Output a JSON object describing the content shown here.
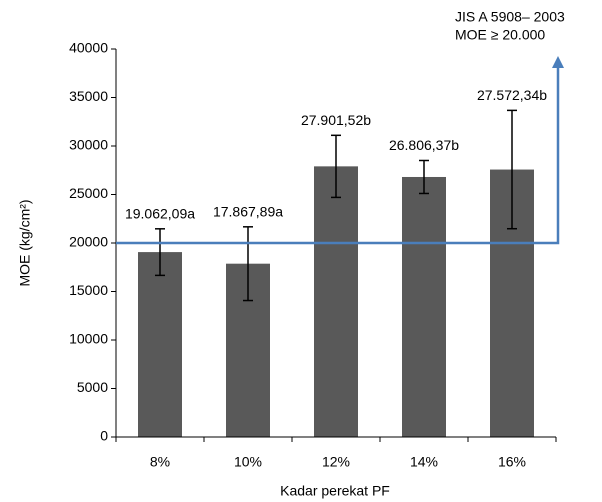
{
  "chart_data": {
    "type": "bar",
    "x_label": "Kadar perekat PF",
    "y_label": "MOE (kg/cm²)",
    "categories": [
      "8%",
      "10%",
      "12%",
      "14%",
      "16%"
    ],
    "values": [
      19062.09,
      17867.89,
      27901.52,
      26806.37,
      27572.34
    ],
    "value_labels": [
      "19.062,09a",
      "17.867,89a",
      "27.901,52b",
      "26.806,37b",
      "27.572,34b"
    ],
    "errors": [
      2400,
      3800,
      3200,
      1700,
      6100
    ],
    "color": "#595959",
    "ylim": [
      0,
      40000
    ],
    "yticks": [
      0,
      5000,
      10000,
      15000,
      20000,
      25000,
      30000,
      35000,
      40000
    ],
    "grid": false,
    "reference_line": {
      "value": 20000,
      "color": "#4a7ebb",
      "annotation": [
        "JIS A 5908– 2003",
        "MOE  ≥ 20.000"
      ]
    }
  }
}
